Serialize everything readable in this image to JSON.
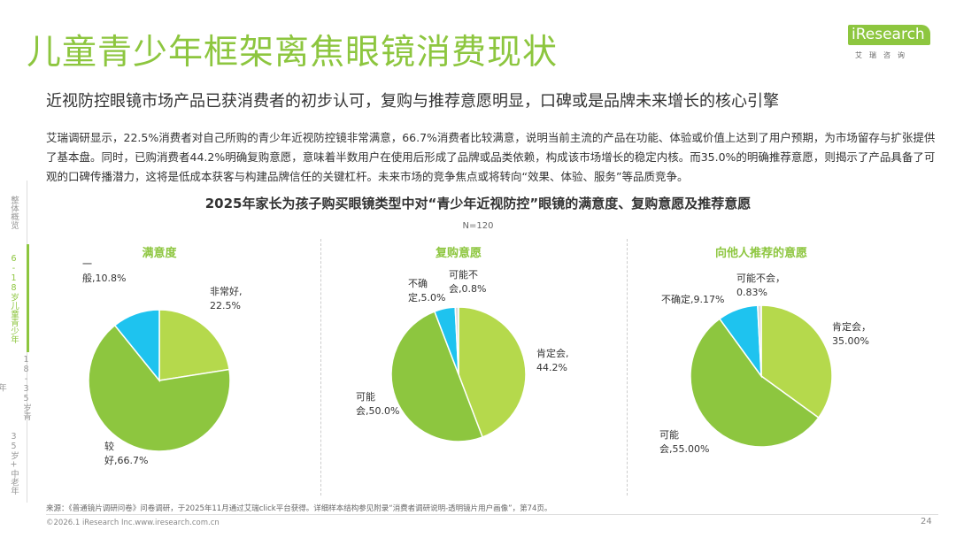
{
  "title": "儿童青少年框架离焦眼镜消费现状",
  "subtitle": "近视防控眼镜市场产品已获消费者的初步认可，复购与推荐意愿明显，口碑或是品牌未来增长的核心引擎",
  "logo": {
    "main": "iResearch",
    "sub": "艾瑞咨询"
  },
  "body_text": "艾瑞调研显示，22.5%消费者对自己所购的青少年近视防控镜非常满意，66.7%消费者比较满意，说明当前主流的产品在功能、体验或价值上达到了用户预期，为市场留存与扩张提供了基本盘。同时，已购消费者44.2%明确复购意愿，意味着半数用户在使用后形成了品牌或品类依赖，构成该市场增长的稳定内核。而35.0%的明确推荐意愿，则揭示了产品具备了可观的口碑传播潜力，这将是低成本获客与构建品牌信任的关键杠杆。未来市场的竞争焦点或将转向“效果、体验、服务”等品质竞争。",
  "sidebar": [
    {
      "label": "整体概览",
      "active": false
    },
    {
      "label": "6-18岁儿童青少年",
      "active": true
    },
    {
      "label": "18-35岁青年",
      "active": false
    },
    {
      "label": "35岁+中老年",
      "active": false
    }
  ],
  "colors": {
    "accent": "#8dc63f",
    "light_green": "#b5d94c",
    "mid_green": "#8dc63f",
    "cyan": "#1ec3ef",
    "gray": "#d9d9d9"
  },
  "chart_data": [
    {
      "type": "pie",
      "title": "满意度",
      "slices": [
        {
          "label": "非常好",
          "value": 22.5,
          "display": "22.5%",
          "color": "#b5d94c"
        },
        {
          "label": "较好",
          "value": 66.7,
          "display": "66.7%",
          "color": "#8dc63f"
        },
        {
          "label": "一般",
          "value": 10.8,
          "display": "10.8%",
          "color": "#1ec3ef"
        }
      ]
    },
    {
      "type": "pie",
      "title": "复购意愿",
      "slices": [
        {
          "label": "肯定会",
          "value": 44.2,
          "display": "44.2%",
          "color": "#b5d94c"
        },
        {
          "label": "可能会",
          "value": 50.0,
          "display": "50.0%",
          "color": "#8dc63f"
        },
        {
          "label": "不确定",
          "value": 5.0,
          "display": "5.0%",
          "color": "#1ec3ef"
        },
        {
          "label": "可能不会",
          "value": 0.8,
          "display": "0.8%",
          "color": "#d9d9d9"
        }
      ]
    },
    {
      "type": "pie",
      "title": "向他人推荐的意愿",
      "slices": [
        {
          "label": "肯定会",
          "value": 35.0,
          "display": "35.00%",
          "color": "#b5d94c"
        },
        {
          "label": "可能会",
          "value": 55.0,
          "display": "55.00%",
          "color": "#8dc63f"
        },
        {
          "label": "不确定",
          "value": 9.17,
          "display": "9.17%",
          "color": "#1ec3ef"
        },
        {
          "label": "可能不会",
          "value": 0.83,
          "display": "0.83%",
          "color": "#d9d9d9"
        }
      ]
    }
  ],
  "chart_title": "2025年家长为孩子购买眼镜类型中对“青少年近视防控”眼镜的满意度、复购意愿及推荐意愿",
  "n_note": "N=120",
  "source": "来源：《普通镜片调研问卷》问卷调研，于2025年11月通过艾瑞click平台获得。详细样本结构参见附录“消费者调研说明-透明镜片用户画像”，第74页。",
  "copyright": "©2026.1 iResearch Inc.www.iresearch.com.cn",
  "page_number": "24"
}
